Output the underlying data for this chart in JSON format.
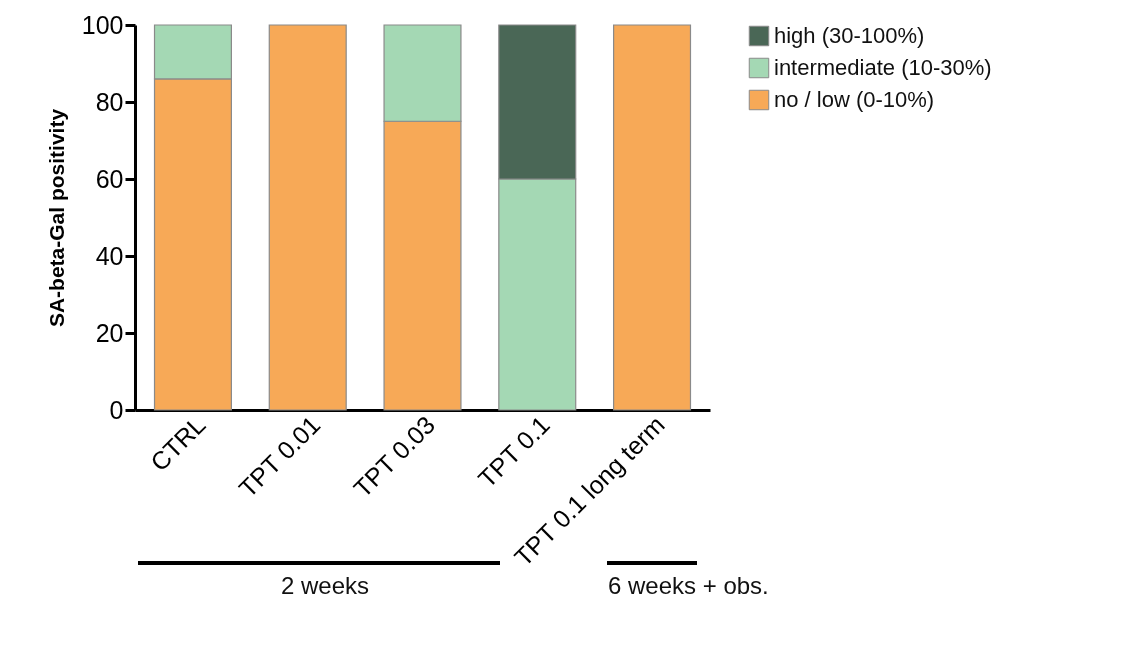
{
  "chart_data": {
    "type": "bar",
    "stacked": true,
    "ylabel": "SA-beta-Gal positivity",
    "categories": [
      "CTRL",
      "TPT 0.01",
      "TPT 0.03",
      "TPT 0.1",
      "TPT 0.1 long term"
    ],
    "series": [
      {
        "name": "no / low (0-10%)",
        "color": "#f7a957",
        "values": [
          86,
          100,
          75,
          0,
          100
        ]
      },
      {
        "name": "intermediate (10-30%)",
        "color": "#a4d8b4",
        "values": [
          14,
          0,
          25,
          60,
          0
        ]
      },
      {
        "name": "high (30-100%)",
        "color": "#4a6756",
        "values": [
          0,
          0,
          0,
          40,
          0
        ]
      }
    ],
    "ylim": [
      0,
      100
    ],
    "yticks": [
      0,
      20,
      40,
      60,
      80,
      100
    ],
    "grid": false,
    "legend": "top right",
    "annotations": [
      "2 weeks",
      "6 weeks + obs."
    ]
  }
}
